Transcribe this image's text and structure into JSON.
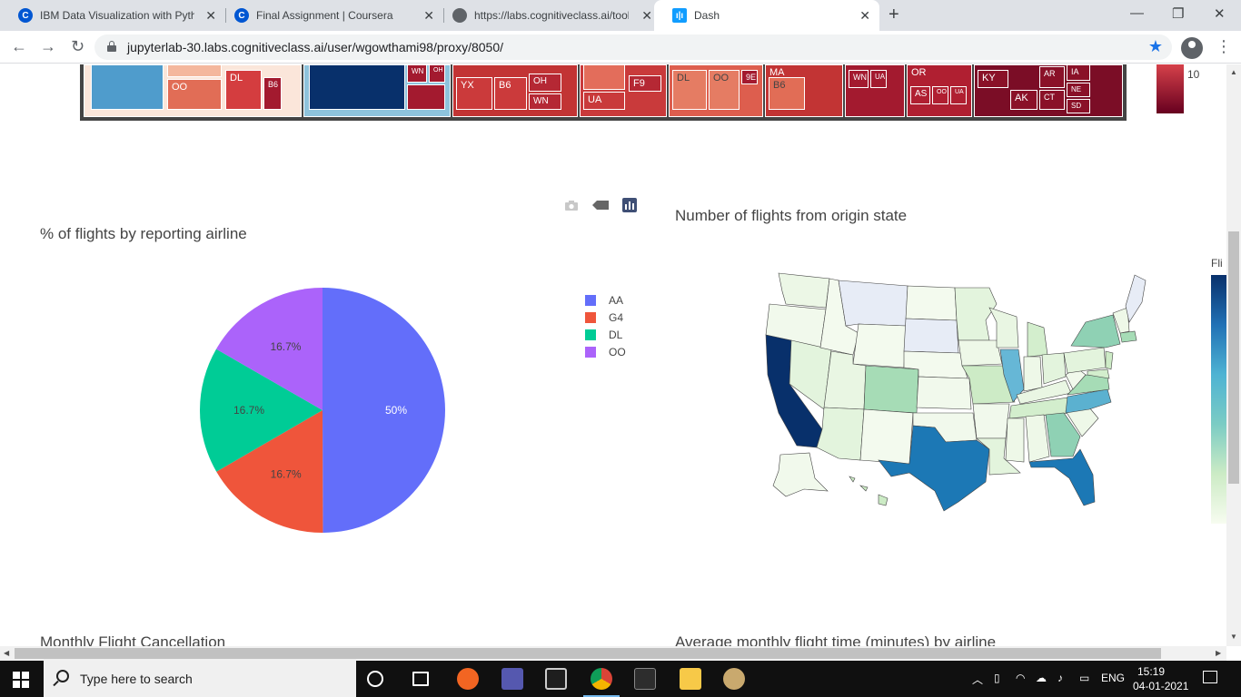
{
  "tabs": [
    {
      "title": "IBM Data Visualization with Pyth",
      "favicon": "coursera-icon"
    },
    {
      "title": "Final Assignment | Coursera",
      "favicon": "coursera-icon"
    },
    {
      "title": "https://labs.cognitiveclass.ai/tool",
      "favicon": "globe-icon"
    },
    {
      "title": "Dash",
      "favicon": "dash-icon"
    }
  ],
  "address_bar": {
    "url": "jupyterlab-30.labs.cognitiveclass.ai/user/wgowthami98/proxy/8050/"
  },
  "treemap": {
    "labels": [
      "OO",
      "DL",
      "B6",
      "WN",
      "OH",
      "YX",
      "B6",
      "OH",
      "WN",
      "UA",
      "F9",
      "DL",
      "OO",
      "9E",
      "MA",
      "B6",
      "WN",
      "UA",
      "OR",
      "AS",
      "OO",
      "UA",
      "KY",
      "AK",
      "AR",
      "IA",
      "NE",
      "CT",
      "SD"
    ],
    "colorbar_tick": "10"
  },
  "pie_chart": {
    "title": "% of flights by reporting airline",
    "chart_data": {
      "type": "pie",
      "title": "% of flights by reporting airline",
      "labels": [
        "AA",
        "G4",
        "DL",
        "OO"
      ],
      "values": [
        50,
        16.7,
        16.7,
        16.7
      ],
      "text_labels": [
        "50%",
        "16.7%",
        "16.7%",
        "16.7%"
      ],
      "colors": [
        "#636efa",
        "#ef553b",
        "#00cc96",
        "#ab63fa"
      ],
      "legend_position": "right"
    }
  },
  "map_chart": {
    "title": "Number of flights from origin state",
    "colorbar_title": "Fli",
    "colorscale": [
      "#08306b",
      "#2171b5",
      "#4eb3d3",
      "#7bccc4",
      "#ccebc5",
      "#f7fcf0"
    ]
  },
  "bottom_titles": {
    "left": "Monthly Flight Cancellation",
    "right": "Average monthly flight time (minutes) by airline"
  },
  "taskbar": {
    "search_placeholder": "Type here to search",
    "language": "ENG",
    "time": "15:19",
    "date": "04-01-2021"
  }
}
